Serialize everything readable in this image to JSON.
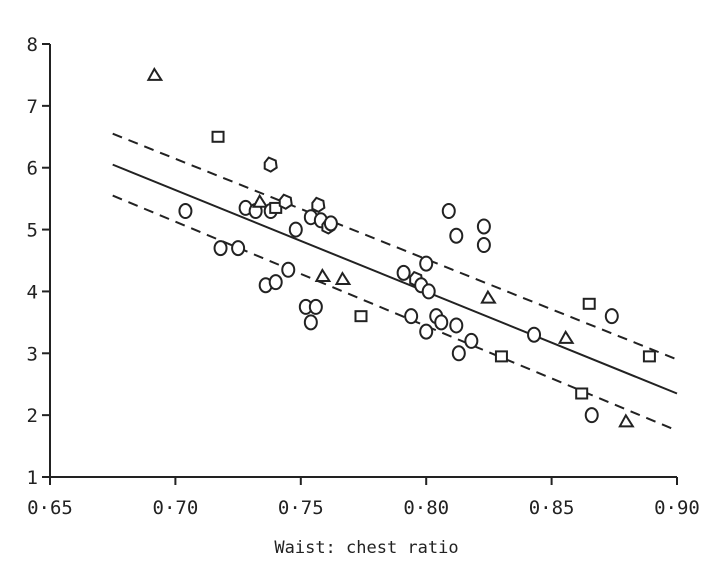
{
  "chart_data": {
    "type": "scatter",
    "title": "",
    "xlabel": "Waist: chest ratio",
    "ylabel": "",
    "xlim": [
      0.65,
      0.9
    ],
    "ylim": [
      1,
      8
    ],
    "x_ticks": [
      0.65,
      0.7,
      0.75,
      0.8,
      0.85,
      0.9
    ],
    "x_tick_labels": [
      "0·65",
      "0·70",
      "0·75",
      "0·80",
      "0·85",
      "0·90"
    ],
    "y_ticks": [
      1,
      2,
      3,
      4,
      5,
      6,
      7,
      8
    ],
    "y_tick_labels": [
      "1",
      "2",
      "3",
      "4",
      "5",
      "6",
      "7",
      "8"
    ],
    "grid": false,
    "legend": "none",
    "points": [
      {
        "x": 0.692,
        "y": 7.5,
        "marker": "triangle"
      },
      {
        "x": 0.717,
        "y": 6.5,
        "marker": "square"
      },
      {
        "x": 0.738,
        "y": 6.05,
        "marker": "pentagon"
      },
      {
        "x": 0.704,
        "y": 5.3,
        "marker": "circle"
      },
      {
        "x": 0.718,
        "y": 4.7,
        "marker": "circle"
      },
      {
        "x": 0.725,
        "y": 4.7,
        "marker": "circle"
      },
      {
        "x": 0.728,
        "y": 5.35,
        "marker": "circle"
      },
      {
        "x": 0.732,
        "y": 5.3,
        "marker": "circle"
      },
      {
        "x": 0.734,
        "y": 5.45,
        "marker": "triangle"
      },
      {
        "x": 0.738,
        "y": 5.3,
        "marker": "circle"
      },
      {
        "x": 0.74,
        "y": 5.35,
        "marker": "square"
      },
      {
        "x": 0.744,
        "y": 5.45,
        "marker": "pentagon"
      },
      {
        "x": 0.748,
        "y": 5.0,
        "marker": "circle"
      },
      {
        "x": 0.754,
        "y": 5.2,
        "marker": "circle"
      },
      {
        "x": 0.757,
        "y": 5.4,
        "marker": "pentagon"
      },
      {
        "x": 0.758,
        "y": 5.15,
        "marker": "circle"
      },
      {
        "x": 0.761,
        "y": 5.05,
        "marker": "pentagon"
      },
      {
        "x": 0.762,
        "y": 5.1,
        "marker": "circle"
      },
      {
        "x": 0.736,
        "y": 4.1,
        "marker": "circle"
      },
      {
        "x": 0.74,
        "y": 4.15,
        "marker": "circle"
      },
      {
        "x": 0.745,
        "y": 4.35,
        "marker": "circle"
      },
      {
        "x": 0.752,
        "y": 3.75,
        "marker": "circle"
      },
      {
        "x": 0.754,
        "y": 3.5,
        "marker": "circle"
      },
      {
        "x": 0.756,
        "y": 3.75,
        "marker": "circle"
      },
      {
        "x": 0.759,
        "y": 4.25,
        "marker": "triangle"
      },
      {
        "x": 0.767,
        "y": 4.2,
        "marker": "triangle"
      },
      {
        "x": 0.774,
        "y": 3.6,
        "marker": "square"
      },
      {
        "x": 0.791,
        "y": 4.3,
        "marker": "circle"
      },
      {
        "x": 0.794,
        "y": 3.6,
        "marker": "circle"
      },
      {
        "x": 0.796,
        "y": 4.2,
        "marker": "pentagon"
      },
      {
        "x": 0.798,
        "y": 4.1,
        "marker": "circle"
      },
      {
        "x": 0.8,
        "y": 4.45,
        "marker": "circle"
      },
      {
        "x": 0.801,
        "y": 4.0,
        "marker": "circle"
      },
      {
        "x": 0.8,
        "y": 3.35,
        "marker": "circle"
      },
      {
        "x": 0.804,
        "y": 3.6,
        "marker": "circle"
      },
      {
        "x": 0.806,
        "y": 3.5,
        "marker": "circle"
      },
      {
        "x": 0.809,
        "y": 5.3,
        "marker": "circle"
      },
      {
        "x": 0.812,
        "y": 4.9,
        "marker": "circle"
      },
      {
        "x": 0.812,
        "y": 3.45,
        "marker": "circle"
      },
      {
        "x": 0.813,
        "y": 3.0,
        "marker": "circle"
      },
      {
        "x": 0.818,
        "y": 3.2,
        "marker": "circle"
      },
      {
        "x": 0.823,
        "y": 5.05,
        "marker": "circle"
      },
      {
        "x": 0.823,
        "y": 4.75,
        "marker": "circle"
      },
      {
        "x": 0.825,
        "y": 3.9,
        "marker": "triangle"
      },
      {
        "x": 0.83,
        "y": 2.95,
        "marker": "square"
      },
      {
        "x": 0.843,
        "y": 3.3,
        "marker": "circle"
      },
      {
        "x": 0.856,
        "y": 3.25,
        "marker": "triangle"
      },
      {
        "x": 0.862,
        "y": 2.35,
        "marker": "square"
      },
      {
        "x": 0.865,
        "y": 3.8,
        "marker": "square"
      },
      {
        "x": 0.866,
        "y": 2.0,
        "marker": "circle"
      },
      {
        "x": 0.874,
        "y": 3.6,
        "marker": "circle"
      },
      {
        "x": 0.88,
        "y": 1.9,
        "marker": "triangle"
      },
      {
        "x": 0.889,
        "y": 2.95,
        "marker": "square"
      }
    ],
    "lines": [
      {
        "style": "solid",
        "x": [
          0.675,
          0.9
        ],
        "y": [
          6.05,
          2.35
        ]
      },
      {
        "style": "dashed",
        "x": [
          0.675,
          0.9
        ],
        "y": [
          6.55,
          2.9
        ]
      },
      {
        "style": "dashed",
        "x": [
          0.675,
          0.9
        ],
        "y": [
          5.55,
          1.75
        ]
      }
    ],
    "colors": {
      "ink": "#222222",
      "background": "#ffffff"
    }
  }
}
